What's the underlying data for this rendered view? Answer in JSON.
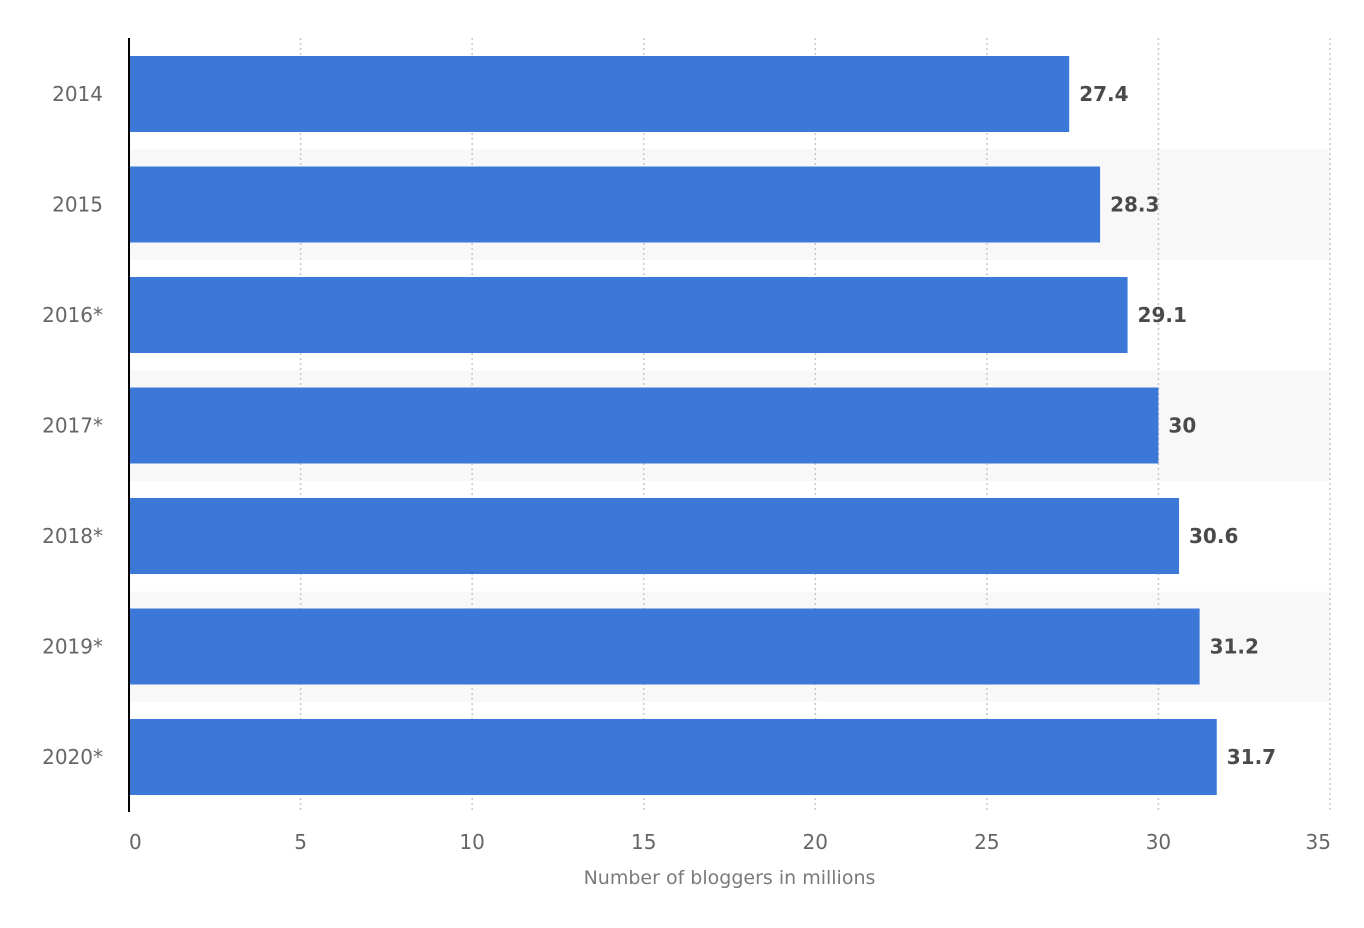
{
  "chart_data": {
    "type": "bar",
    "orientation": "horizontal",
    "categories": [
      "2014",
      "2015",
      "2016*",
      "2017*",
      "2018*",
      "2019*",
      "2020*"
    ],
    "values": [
      27.4,
      28.3,
      29.1,
      30,
      30.6,
      31.2,
      31.7
    ],
    "value_labels": [
      "27.4",
      "28.3",
      "29.1",
      "30",
      "30.6",
      "31.2",
      "31.7"
    ],
    "title": "",
    "xlabel": "Number of bloggers in millions",
    "ylabel": "",
    "xlim": [
      0,
      35
    ],
    "x_ticks": [
      0,
      5,
      10,
      15,
      20,
      25,
      30,
      35
    ],
    "x_tick_labels": [
      "0",
      "5",
      "10",
      "15",
      "20",
      "25",
      "30",
      "35"
    ],
    "grid": true,
    "legend": "none",
    "bar_color": "#3b78d8",
    "band_color": "#f8f8f8",
    "grid_color": "#c8c8c8",
    "axis_color": "#000000"
  }
}
